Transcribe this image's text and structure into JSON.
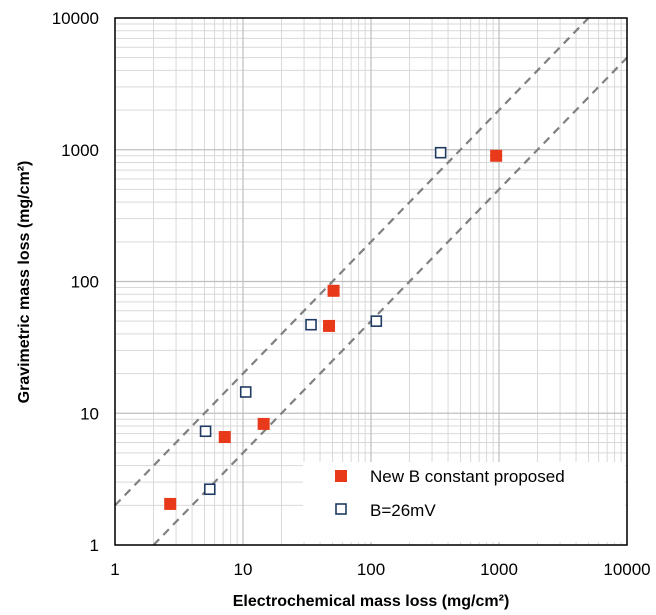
{
  "chart_data": {
    "type": "scatter",
    "xscale": "log",
    "yscale": "log",
    "xlim": [
      1,
      10000
    ],
    "ylim": [
      1,
      10000
    ],
    "xlabel": "Electrochemical mass loss (mg/cm²)",
    "ylabel": "Gravimetric mass loss (mg/cm²)",
    "xticks": [
      "1",
      "10",
      "100",
      "1000",
      "10000"
    ],
    "yticks": [
      "1",
      "10",
      "100",
      "1000",
      "10000"
    ],
    "grid": "major and minor",
    "legend_position": "bottom-right",
    "series": [
      {
        "name": "New B constant proposed",
        "marker": "filled-square",
        "color": "#e8391a",
        "points": [
          {
            "x": 2.7,
            "y": 2.05
          },
          {
            "x": 7.2,
            "y": 6.6
          },
          {
            "x": 14.5,
            "y": 8.3
          },
          {
            "x": 47,
            "y": 46
          },
          {
            "x": 51,
            "y": 85
          },
          {
            "x": 950,
            "y": 900
          }
        ]
      },
      {
        "name": "B=26mV",
        "marker": "open-square",
        "color": "#1f3b63",
        "points": [
          {
            "x": 5.1,
            "y": 7.3
          },
          {
            "x": 5.5,
            "y": 2.65
          },
          {
            "x": 10.5,
            "y": 14.5
          },
          {
            "x": 34,
            "y": 47
          },
          {
            "x": 110,
            "y": 50
          },
          {
            "x": 350,
            "y": 950
          }
        ]
      }
    ],
    "reference_lines": [
      {
        "style": "dashed",
        "color": "#808080",
        "slope": 1,
        "factor": 2
      },
      {
        "style": "dashed",
        "color": "#808080",
        "slope": 1,
        "factor": 0.5
      }
    ]
  }
}
